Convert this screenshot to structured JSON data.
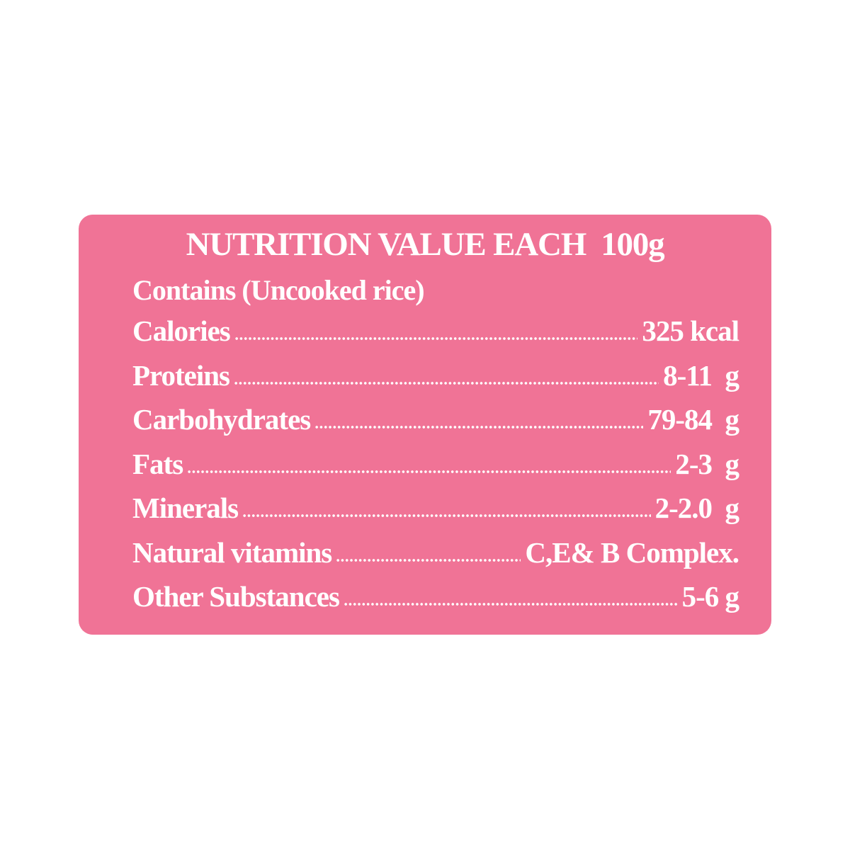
{
  "card": {
    "background_color": "#f07396",
    "title": "NUTRITION VALUE EACH  100g",
    "subtitle": "Contains (Uncooked rice)",
    "rows": [
      {
        "label": "Calories",
        "value": "325 kcal"
      },
      {
        "label": "Proteins",
        "value": "8-11  g"
      },
      {
        "label": "Carbohydrates",
        "value": "79-84  g"
      },
      {
        "label": "Fats",
        "value": "2-3  g"
      },
      {
        "label": "Minerals",
        "value": "2-2.0  g"
      },
      {
        "label": "Natural vitamins",
        "value": "C,E& B Complex."
      },
      {
        "label": "Other Substances",
        "value": "5-6 g"
      }
    ]
  }
}
